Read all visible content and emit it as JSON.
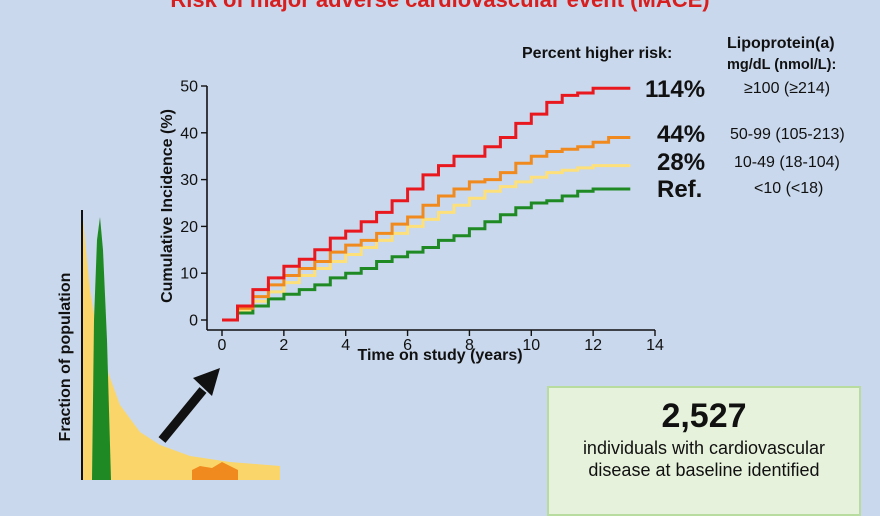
{
  "title": "Risk of major adverse cardiovascular event (MACE)",
  "headers": {
    "percent_higher_risk": "Percent higher risk:",
    "lpa_line1": "Lipoprotein(a)",
    "lpa_line2": "mg/dL (nmol/L):"
  },
  "groups": [
    {
      "risk": "114%",
      "level": "≥100 (≥214)",
      "color": "#e8181e"
    },
    {
      "risk": "44%",
      "level": "50-99 (105-213)",
      "color": "#f08a1e"
    },
    {
      "risk": "28%",
      "level": "10-49 (18-104)",
      "color": "#fde07a"
    },
    {
      "risk": "Ref.",
      "level": "<10 (<18)",
      "color": "#1f8a24"
    }
  ],
  "population": {
    "ylabel": "Fraction of population",
    "colors": {
      "green": "#1f8a24",
      "yellow": "#fad66a",
      "orange": "#f08a1e"
    }
  },
  "info_box": {
    "number": "2,527",
    "text": "individuals with cardiovascular disease at baseline identified"
  },
  "chart_data": {
    "type": "line",
    "title": "Risk of major adverse cardiovascular event (MACE)",
    "xlabel": "Time on study (years)",
    "ylabel": "Cumulative Incidence (%)",
    "xlim": [
      0,
      14
    ],
    "ylim": [
      0,
      50
    ],
    "xticks": [
      0,
      2,
      4,
      6,
      8,
      10,
      12,
      14
    ],
    "yticks": [
      0,
      10,
      20,
      30,
      40,
      50
    ],
    "grid": false,
    "series": [
      {
        "name": "≥100 (≥214)",
        "color": "#e8181e",
        "x": [
          0,
          0.5,
          1,
          1.5,
          2,
          2.5,
          3,
          3.5,
          4,
          4.5,
          5,
          5.5,
          6,
          6.5,
          7,
          7.5,
          8,
          8.5,
          9,
          9.5,
          10,
          10.5,
          11,
          11.5,
          12,
          12.5,
          13.2
        ],
        "y": [
          0,
          3,
          6.5,
          9,
          11.5,
          13,
          15,
          17.5,
          19,
          21,
          23,
          25.5,
          28,
          31,
          33,
          35,
          35,
          37,
          39,
          42,
          44,
          46.5,
          48,
          48.5,
          49.5,
          49.5,
          49.5
        ]
      },
      {
        "name": "50-99 (105-213)",
        "color": "#f08a1e",
        "x": [
          0,
          0.5,
          1,
          1.5,
          2,
          2.5,
          3,
          3.5,
          4,
          4.5,
          5,
          5.5,
          6,
          6.5,
          7,
          7.5,
          8,
          8.5,
          9,
          9.5,
          10,
          10.5,
          11,
          11.5,
          12,
          12.5,
          13.2
        ],
        "y": [
          0,
          2.5,
          5,
          7.5,
          9.5,
          11,
          12.5,
          14.5,
          16,
          17,
          18.5,
          20.5,
          22,
          24.5,
          26.5,
          28,
          29.5,
          30,
          31.5,
          33.5,
          35,
          36,
          36.5,
          37,
          38,
          39,
          39
        ]
      },
      {
        "name": "10-49 (18-104)",
        "color": "#fde07a",
        "x": [
          0,
          0.5,
          1,
          1.5,
          2,
          2.5,
          3,
          3.5,
          4,
          4.5,
          5,
          5.5,
          6,
          6.5,
          7,
          7.5,
          8,
          8.5,
          9,
          9.5,
          10,
          10.5,
          11,
          11.5,
          12,
          12.5,
          13.2
        ],
        "y": [
          0,
          2,
          4,
          6,
          8,
          9.5,
          11,
          12.5,
          14,
          15.5,
          17,
          18.5,
          20,
          21.5,
          23,
          24.5,
          26,
          27.5,
          28.5,
          29.5,
          30.5,
          31.5,
          32,
          32.5,
          33,
          33,
          33
        ]
      },
      {
        "name": "<10 (<18)",
        "color": "#1f8a24",
        "x": [
          0,
          0.5,
          1,
          1.5,
          2,
          2.5,
          3,
          3.5,
          4,
          4.5,
          5,
          5.5,
          6,
          6.5,
          7,
          7.5,
          8,
          8.5,
          9,
          9.5,
          10,
          10.5,
          11,
          11.5,
          12,
          12.5,
          13.2
        ],
        "y": [
          0,
          1.5,
          3,
          4.5,
          5.5,
          6.5,
          7.5,
          9,
          10,
          11,
          12.5,
          13.5,
          14.5,
          15.5,
          17,
          18,
          19.5,
          21,
          22.5,
          24,
          25,
          25.5,
          26.5,
          27.5,
          28,
          28,
          28
        ]
      }
    ]
  }
}
